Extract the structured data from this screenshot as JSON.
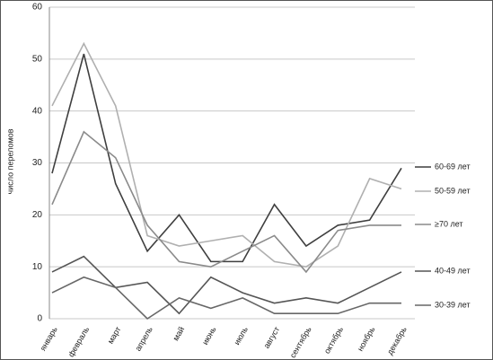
{
  "chart_data": {
    "type": "line",
    "y_label": "число переломов",
    "categories": [
      "январь",
      "февраль",
      "март",
      "апрель",
      "май",
      "июнь",
      "июль",
      "август",
      "сентябрь",
      "октябрь",
      "ноябрь",
      "декабрь"
    ],
    "series": [
      {
        "name": "60-69 лет",
        "color": "#3f3f3f",
        "values": [
          28,
          51,
          26,
          13,
          20,
          11,
          11,
          22,
          14,
          18,
          19,
          29
        ]
      },
      {
        "name": "50-59 лет",
        "color": "#b0b0b0",
        "values": [
          41,
          53,
          41,
          16,
          14,
          15,
          16,
          11,
          10,
          14,
          27,
          25
        ]
      },
      {
        "name": "≥70 лет",
        "color": "#8a8a8a",
        "values": [
          22,
          36,
          31,
          18,
          11,
          10,
          13,
          16,
          9,
          17,
          18,
          18
        ]
      },
      {
        "name": "40-49 лет",
        "color": "#555555",
        "values": [
          9,
          12,
          6,
          7,
          1,
          8,
          5,
          3,
          4,
          3,
          6,
          9
        ]
      },
      {
        "name": "30-39 лет",
        "color": "#676767",
        "values": [
          5,
          8,
          6,
          0,
          4,
          2,
          4,
          1,
          1,
          1,
          3,
          3
        ]
      }
    ],
    "ylim": [
      0,
      60
    ],
    "yticks": [
      0,
      10,
      20,
      30,
      40,
      50,
      60
    ],
    "grid": true
  }
}
